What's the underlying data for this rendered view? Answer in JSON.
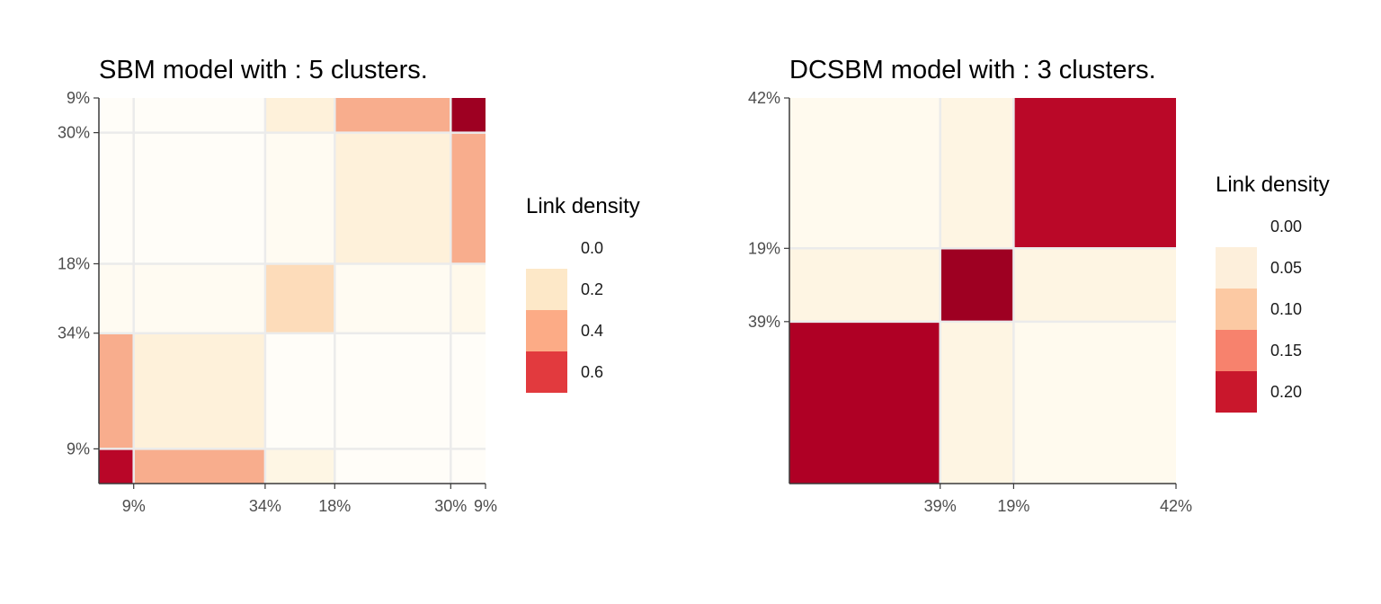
{
  "chart_data": [
    {
      "type": "heatmap",
      "title": "SBM model with : 5 clusters.",
      "row_labels": [
        "9%",
        "30%",
        "18%",
        "34%",
        "9%"
      ],
      "col_labels": [
        "9%",
        "34%",
        "18%",
        "30%",
        "9%"
      ],
      "cluster_sizes_percent": [
        9,
        34,
        18,
        30,
        9
      ],
      "values": [
        [
          0.0,
          0.0,
          0.05,
          0.28,
          0.8
        ],
        [
          0.0,
          0.0,
          0.01,
          0.05,
          0.28
        ],
        [
          0.01,
          0.01,
          0.15,
          0.01,
          0.02
        ],
        [
          0.28,
          0.05,
          0.0,
          0.0,
          0.0
        ],
        [
          0.65,
          0.28,
          0.03,
          0.0,
          0.0
        ]
      ],
      "grid": true,
      "legend": {
        "title": "Link density",
        "position": "right",
        "entries": [
          {
            "label": "0.0",
            "color": "#ffffff"
          },
          {
            "label": "0.2",
            "color": "#fde8c8"
          },
          {
            "label": "0.4",
            "color": "#fcab86"
          },
          {
            "label": "0.6",
            "color": "#e23a3e"
          }
        ]
      }
    },
    {
      "type": "heatmap",
      "title": "DCSBM model with : 3 clusters.",
      "row_labels": [
        "42%",
        "19%",
        "39%"
      ],
      "col_labels": [
        "39%",
        "19%",
        "42%"
      ],
      "cluster_sizes_percent": [
        39,
        19,
        42
      ],
      "values": [
        [
          0.005,
          0.01,
          0.2
        ],
        [
          0.01,
          0.25,
          0.01
        ],
        [
          0.22,
          0.01,
          0.005
        ]
      ],
      "grid": true,
      "legend": {
        "title": "Link density",
        "position": "right",
        "entries": [
          {
            "label": "0.00",
            "color": "#ffffff"
          },
          {
            "label": "0.05",
            "color": "#fdefdb"
          },
          {
            "label": "0.10",
            "color": "#fcc9a3"
          },
          {
            "label": "0.15",
            "color": "#f7826d"
          },
          {
            "label": "0.20",
            "color": "#c9172c"
          }
        ]
      }
    }
  ],
  "colors": {
    "panel_border": "#3a3a3a",
    "grid": "#ebebeb"
  }
}
